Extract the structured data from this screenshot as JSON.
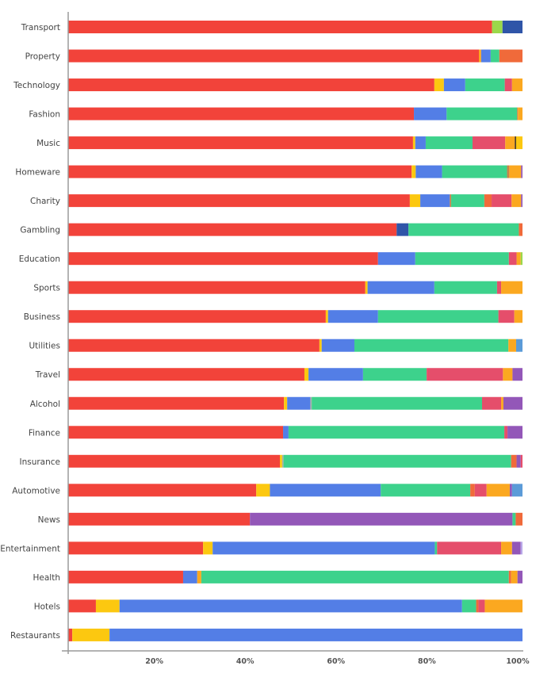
{
  "chart_data": {
    "type": "bar",
    "orientation": "horizontal",
    "stacked": true,
    "normalized": "100%",
    "title": "",
    "xlabel": "",
    "ylabel": "",
    "xlim": [
      0,
      100
    ],
    "x_tick_labels": [
      "20%",
      "40%",
      "60%",
      "80%",
      "100%"
    ],
    "x_ticks": [
      20,
      40,
      60,
      80,
      100
    ],
    "grid": false,
    "legend": "none",
    "palette": {
      "red": "#f2433a",
      "yellow": "#fcc810",
      "blue": "#537ee6",
      "green": "#3dd28c",
      "pink": "#e54e6b",
      "orange": "#fba820",
      "purple": "#9357b8",
      "darkblue": "#2f55a8",
      "lime": "#9bd84a",
      "orangered": "#f06a3a",
      "lightblue": "#5b9bd8",
      "brown": "#c8834a",
      "gray": "#a8b0a8",
      "dark": "#4a3a20",
      "lavender": "#b9a8e8"
    },
    "categories": [
      "Transport",
      "Property",
      "Technology",
      "Fashion",
      "Music",
      "Homeware",
      "Charity",
      "Gambling",
      "Education",
      "Sports",
      "Business",
      "Utilities",
      "Travel",
      "Alcohol",
      "Finance",
      "Insurance",
      "Automotive",
      "News",
      "Entertainment",
      "Health",
      "Hotels",
      "Restaurants"
    ],
    "rows": [
      {
        "category": "Transport",
        "segments": [
          {
            "color": "red",
            "value": 93.3
          },
          {
            "color": "lime",
            "value": 2.3
          },
          {
            "color": "darkblue",
            "value": 4.4
          }
        ]
      },
      {
        "category": "Property",
        "segments": [
          {
            "color": "red",
            "value": 90.4
          },
          {
            "color": "orange",
            "value": 0.5
          },
          {
            "color": "blue",
            "value": 2.1
          },
          {
            "color": "green",
            "value": 1.9
          },
          {
            "color": "orangered",
            "value": 5.1
          }
        ]
      },
      {
        "category": "Technology",
        "segments": [
          {
            "color": "red",
            "value": 80.6
          },
          {
            "color": "yellow",
            "value": 2.1
          },
          {
            "color": "blue",
            "value": 4.7
          },
          {
            "color": "green",
            "value": 8.7
          },
          {
            "color": "pink",
            "value": 1.6
          },
          {
            "color": "orange",
            "value": 2.3
          }
        ]
      },
      {
        "category": "Fashion",
        "segments": [
          {
            "color": "red",
            "value": 76.1
          },
          {
            "color": "blue",
            "value": 7.2
          },
          {
            "color": "green",
            "value": 15.5
          },
          {
            "color": "brown",
            "value": 0.2
          },
          {
            "color": "orange",
            "value": 1.0
          }
        ]
      },
      {
        "category": "Music",
        "segments": [
          {
            "color": "red",
            "value": 75.9
          },
          {
            "color": "yellow",
            "value": 0.5
          },
          {
            "color": "blue",
            "value": 2.3
          },
          {
            "color": "green",
            "value": 10.3
          },
          {
            "color": "pink",
            "value": 7.2
          },
          {
            "color": "orange",
            "value": 2.1
          },
          {
            "color": "dark",
            "value": 0.3
          },
          {
            "color": "yellow",
            "value": 1.4
          }
        ]
      },
      {
        "category": "Homeware",
        "segments": [
          {
            "color": "red",
            "value": 75.6
          },
          {
            "color": "yellow",
            "value": 0.9
          },
          {
            "color": "blue",
            "value": 5.8
          },
          {
            "color": "green",
            "value": 14.3
          },
          {
            "color": "brown",
            "value": 0.5
          },
          {
            "color": "orange",
            "value": 2.6
          },
          {
            "color": "purple",
            "value": 0.3
          }
        ]
      },
      {
        "category": "Charity",
        "segments": [
          {
            "color": "red",
            "value": 75.2
          },
          {
            "color": "yellow",
            "value": 2.3
          },
          {
            "color": "blue",
            "value": 6.5
          },
          {
            "color": "brown",
            "value": 0.3
          },
          {
            "color": "green",
            "value": 7.3
          },
          {
            "color": "orangered",
            "value": 1.6
          },
          {
            "color": "pink",
            "value": 4.4
          },
          {
            "color": "orange",
            "value": 2.1
          },
          {
            "color": "purple",
            "value": 0.3
          }
        ]
      },
      {
        "category": "Gambling",
        "segments": [
          {
            "color": "red",
            "value": 72.3
          },
          {
            "color": "darkblue",
            "value": 2.6
          },
          {
            "color": "green",
            "value": 24.3
          },
          {
            "color": "orangered",
            "value": 0.8
          }
        ]
      },
      {
        "category": "Education",
        "segments": [
          {
            "color": "red",
            "value": 68.2
          },
          {
            "color": "blue",
            "value": 8.2
          },
          {
            "color": "green",
            "value": 20.6
          },
          {
            "color": "pink",
            "value": 1.7
          },
          {
            "color": "orange",
            "value": 0.9
          },
          {
            "color": "lime",
            "value": 0.4
          }
        ]
      },
      {
        "category": "Sports",
        "segments": [
          {
            "color": "red",
            "value": 65.4
          },
          {
            "color": "yellow",
            "value": 0.5
          },
          {
            "color": "blue",
            "value": 14.7
          },
          {
            "color": "green",
            "value": 13.8
          },
          {
            "color": "pink",
            "value": 0.9
          },
          {
            "color": "orange",
            "value": 4.7
          }
        ]
      },
      {
        "category": "Business",
        "segments": [
          {
            "color": "red",
            "value": 56.7
          },
          {
            "color": "yellow",
            "value": 0.5
          },
          {
            "color": "blue",
            "value": 11.0
          },
          {
            "color": "green",
            "value": 26.5
          },
          {
            "color": "pink",
            "value": 3.5
          },
          {
            "color": "orange",
            "value": 1.8
          }
        ]
      },
      {
        "category": "Utilities",
        "segments": [
          {
            "color": "red",
            "value": 55.3
          },
          {
            "color": "yellow",
            "value": 0.5
          },
          {
            "color": "blue",
            "value": 7.2
          },
          {
            "color": "green",
            "value": 33.9
          },
          {
            "color": "orange",
            "value": 1.7
          },
          {
            "color": "lightblue",
            "value": 1.4
          }
        ]
      },
      {
        "category": "Travel",
        "segments": [
          {
            "color": "red",
            "value": 52.0
          },
          {
            "color": "yellow",
            "value": 0.9
          },
          {
            "color": "blue",
            "value": 12.0
          },
          {
            "color": "green",
            "value": 14.0
          },
          {
            "color": "pink",
            "value": 16.8
          },
          {
            "color": "orange",
            "value": 2.1
          },
          {
            "color": "purple",
            "value": 2.2
          }
        ]
      },
      {
        "category": "Alcohol",
        "segments": [
          {
            "color": "red",
            "value": 47.5
          },
          {
            "color": "yellow",
            "value": 0.7
          },
          {
            "color": "blue",
            "value": 5.1
          },
          {
            "color": "gray",
            "value": 0.3
          },
          {
            "color": "green",
            "value": 37.5
          },
          {
            "color": "pink",
            "value": 4.2
          },
          {
            "color": "orange",
            "value": 0.5
          },
          {
            "color": "purple",
            "value": 4.2
          }
        ]
      },
      {
        "category": "Finance",
        "segments": [
          {
            "color": "red",
            "value": 47.3
          },
          {
            "color": "blue",
            "value": 1.2
          },
          {
            "color": "green",
            "value": 47.5
          },
          {
            "color": "pink",
            "value": 0.7
          },
          {
            "color": "purple",
            "value": 3.3
          }
        ]
      },
      {
        "category": "Insurance",
        "segments": [
          {
            "color": "red",
            "value": 46.6
          },
          {
            "color": "yellow",
            "value": 0.5
          },
          {
            "color": "gray",
            "value": 0.3
          },
          {
            "color": "green",
            "value": 50.1
          },
          {
            "color": "orangered",
            "value": 1.2
          },
          {
            "color": "purple",
            "value": 0.9
          },
          {
            "color": "pink",
            "value": 0.4
          }
        ]
      },
      {
        "category": "Automotive",
        "segments": [
          {
            "color": "red",
            "value": 41.4
          },
          {
            "color": "yellow",
            "value": 3.0
          },
          {
            "color": "blue",
            "value": 24.4
          },
          {
            "color": "green",
            "value": 19.7
          },
          {
            "color": "orangered",
            "value": 1.0
          },
          {
            "color": "pink",
            "value": 2.6
          },
          {
            "color": "orange",
            "value": 5.1
          },
          {
            "color": "purple",
            "value": 0.5
          },
          {
            "color": "lightblue",
            "value": 2.3
          }
        ]
      },
      {
        "category": "News",
        "segments": [
          {
            "color": "red",
            "value": 40.0
          },
          {
            "color": "purple",
            "value": 57.8
          },
          {
            "color": "green",
            "value": 0.7
          },
          {
            "color": "orangered",
            "value": 1.5
          }
        ]
      },
      {
        "category": "Entertainment",
        "segments": [
          {
            "color": "red",
            "value": 29.7
          },
          {
            "color": "yellow",
            "value": 2.1
          },
          {
            "color": "blue",
            "value": 48.9
          },
          {
            "color": "green",
            "value": 0.5
          },
          {
            "color": "pink",
            "value": 14.1
          },
          {
            "color": "orange",
            "value": 2.4
          },
          {
            "color": "purple",
            "value": 1.9
          },
          {
            "color": "lavender",
            "value": 0.4
          }
        ]
      },
      {
        "category": "Health",
        "segments": [
          {
            "color": "red",
            "value": 25.3
          },
          {
            "color": "blue",
            "value": 3.1
          },
          {
            "color": "orange",
            "value": 0.9
          },
          {
            "color": "green",
            "value": 67.7
          },
          {
            "color": "orangered",
            "value": 0.5
          },
          {
            "color": "orange",
            "value": 1.4
          },
          {
            "color": "purple",
            "value": 1.1
          }
        ]
      },
      {
        "category": "Hotels",
        "segments": [
          {
            "color": "red",
            "value": 6.1
          },
          {
            "color": "yellow",
            "value": 5.2
          },
          {
            "color": "blue",
            "value": 75.4
          },
          {
            "color": "green",
            "value": 3.1
          },
          {
            "color": "orangered",
            "value": 0.5
          },
          {
            "color": "pink",
            "value": 1.4
          },
          {
            "color": "orange",
            "value": 8.3
          }
        ]
      },
      {
        "category": "Restaurants",
        "segments": [
          {
            "color": "red",
            "value": 0.9
          },
          {
            "color": "yellow",
            "value": 8.2
          },
          {
            "color": "blue",
            "value": 90.9
          }
        ]
      }
    ]
  }
}
